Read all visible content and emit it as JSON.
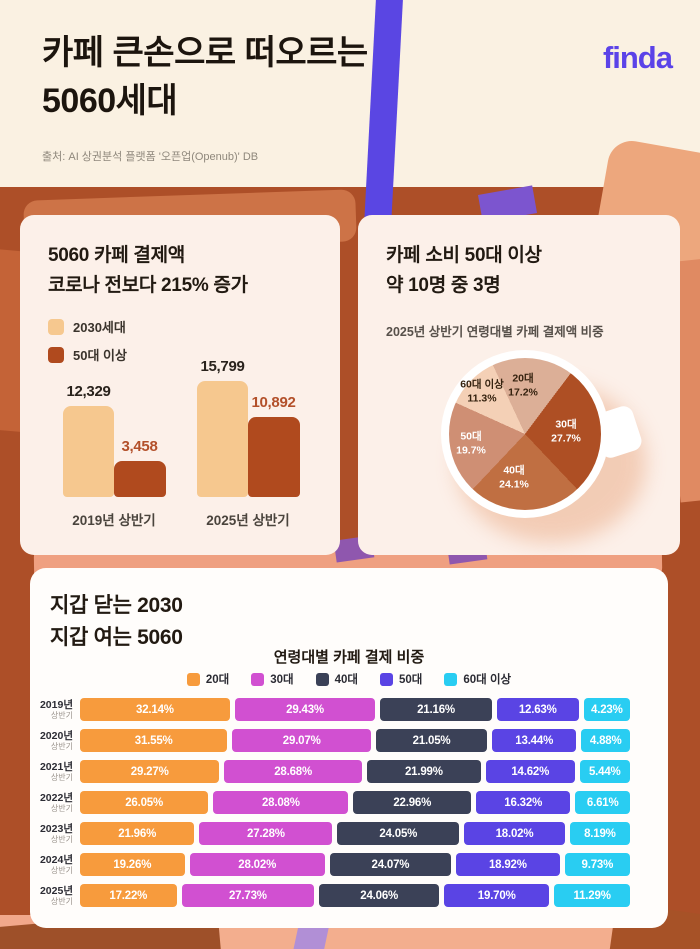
{
  "brand": {
    "logo": "finda",
    "color": "#5b43e8"
  },
  "header": {
    "title_line1": "카페 큰손으로 떠오르는",
    "title_line2": "5060세대",
    "source": "출처: AI 상권분석 플랫폼 '오픈업(Openub)' DB"
  },
  "card_payment": {
    "title_line1": "5060 카페 결제액",
    "title_line2": "코로나 전보다 215% 증가"
  },
  "card_pie": {
    "title_line1": "카페 소비 50대 이상",
    "title_line2": "약 10명 중 3명",
    "subtitle": "2025년 상반기 연령대별 카페 결제액 비중"
  },
  "card_trend": {
    "title_line1": "지갑 닫는 2030",
    "title_line2": "지갑 여는 5060",
    "chart_title": "연령대별 카페 결제 비중"
  },
  "chart_data": [
    {
      "type": "bar",
      "title": "5060 카페 결제액 코로나 전보다 215% 증가",
      "categories": [
        "2019년 상반기",
        "2025년 상반기"
      ],
      "series": [
        {
          "name": "2030세대",
          "color": "#f6c88f",
          "values": [
            12329,
            15799
          ],
          "labels": [
            "12,329",
            "15,799"
          ]
        },
        {
          "name": "50대 이상",
          "color": "#b04a1e",
          "values": [
            3458,
            10892
          ],
          "labels": [
            "3,458",
            "10,892"
          ]
        }
      ],
      "ylim": [
        0,
        16000
      ]
    },
    {
      "type": "pie",
      "title": "2025년 상반기 연령대별 카페 결제액 비중",
      "start_angle_deg": -25,
      "slices": [
        {
          "label": "20대",
          "value": 17.2,
          "display": "17.2%",
          "color": "#dcaf97",
          "text": "dark"
        },
        {
          "label": "30대",
          "value": 27.7,
          "display": "27.7%",
          "color": "#ae4f24",
          "text": "light"
        },
        {
          "label": "40대",
          "value": 24.1,
          "display": "24.1%",
          "color": "#c06f42",
          "text": "light"
        },
        {
          "label": "50대",
          "value": 19.7,
          "display": "19.7%",
          "color": "#cf8f74",
          "text": "light"
        },
        {
          "label": "60대 이상",
          "value": 11.3,
          "display": "11.3%",
          "color": "#f4d0b6",
          "text": "dark"
        }
      ]
    },
    {
      "type": "bar",
      "subtype": "stacked-horizontal",
      "title": "연령대별 카페 결제 비중",
      "legend": [
        {
          "label": "20대",
          "color": "#f79b3d"
        },
        {
          "label": "30대",
          "color": "#d150d1"
        },
        {
          "label": "40대",
          "color": "#3b4157"
        },
        {
          "label": "50대",
          "color": "#5a44e4"
        },
        {
          "label": "60대 이상",
          "color": "#29cdf2"
        }
      ],
      "rows": [
        {
          "year": "2019년",
          "half": "상반기",
          "values": [
            32.14,
            29.43,
            21.16,
            12.63,
            4.23
          ],
          "labels": [
            "32.14%",
            "29.43%",
            "21.16%",
            "12.63%",
            "4.23%"
          ]
        },
        {
          "year": "2020년",
          "half": "상반기",
          "values": [
            31.55,
            29.07,
            21.05,
            13.44,
            4.88
          ],
          "labels": [
            "31.55%",
            "29.07%",
            "21.05%",
            "13.44%",
            "4.88%"
          ]
        },
        {
          "year": "2021년",
          "half": "상반기",
          "values": [
            29.27,
            28.68,
            21.99,
            14.62,
            5.44
          ],
          "labels": [
            "29.27%",
            "28.68%",
            "21.99%",
            "14.62%",
            "5.44%"
          ]
        },
        {
          "year": "2022년",
          "half": "상반기",
          "values": [
            26.05,
            28.08,
            22.96,
            16.32,
            6.61
          ],
          "labels": [
            "26.05%",
            "28.08%",
            "22.96%",
            "16.32%",
            "6.61%"
          ]
        },
        {
          "year": "2023년",
          "half": "상반기",
          "values": [
            21.96,
            27.28,
            24.05,
            18.02,
            8.19
          ],
          "labels": [
            "21.96%",
            "27.28%",
            "24.05%",
            "18.02%",
            "8.19%"
          ]
        },
        {
          "year": "2024년",
          "half": "상반기",
          "values": [
            19.26,
            28.02,
            24.07,
            18.92,
            9.73
          ],
          "labels": [
            "19.26%",
            "28.02%",
            "24.07%",
            "18.92%",
            "9.73%"
          ]
        },
        {
          "year": "2025년",
          "half": "상반기",
          "values": [
            17.22,
            27.73,
            24.06,
            19.7,
            11.29
          ],
          "labels": [
            "17.22%",
            "27.73%",
            "24.06%",
            "19.70%",
            "11.29%"
          ]
        }
      ]
    }
  ]
}
